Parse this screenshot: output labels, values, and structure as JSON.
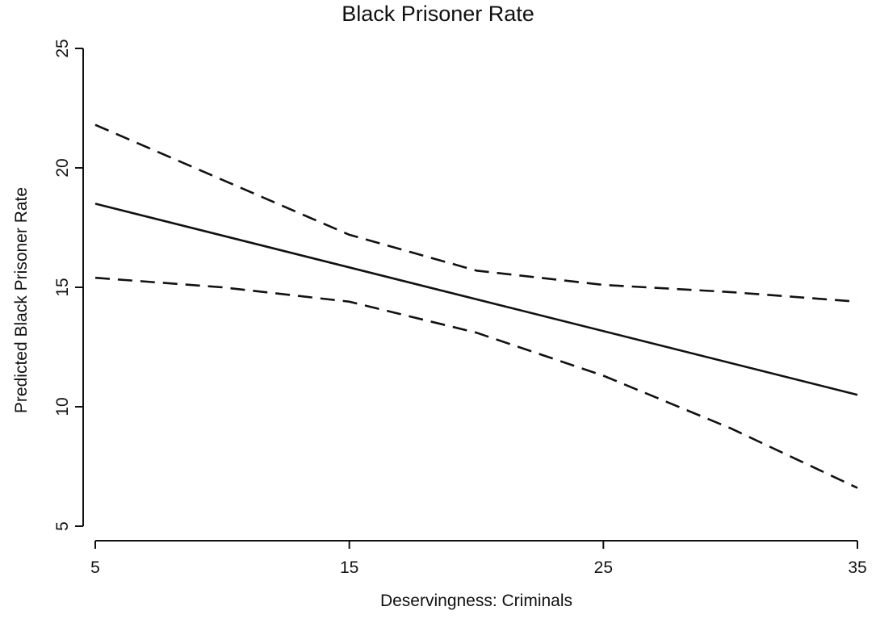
{
  "chart_data": {
    "type": "line",
    "title": "Black Prisoner Rate",
    "xlabel": "Deservingness: Criminals",
    "ylabel": "Predicted Black Prisoner Rate",
    "xlim": [
      5,
      35
    ],
    "ylim": [
      5,
      25
    ],
    "xticks": [
      5,
      15,
      25,
      35
    ],
    "yticks": [
      5,
      10,
      15,
      20,
      25
    ],
    "grid": false,
    "legend": "none",
    "series": [
      {
        "style": "solid",
        "x": [
          5,
          35
        ],
        "y": [
          18.5,
          10.5
        ]
      },
      {
        "style": "dashed",
        "x": [
          5,
          10,
          15,
          20,
          25,
          30,
          35
        ],
        "y": [
          21.8,
          19.5,
          17.2,
          15.7,
          15.1,
          14.8,
          14.4
        ]
      },
      {
        "style": "dashed",
        "x": [
          5,
          10,
          15,
          20,
          25,
          30,
          35
        ],
        "y": [
          15.4,
          15.0,
          14.4,
          13.1,
          11.3,
          9.1,
          6.6
        ]
      }
    ]
  }
}
